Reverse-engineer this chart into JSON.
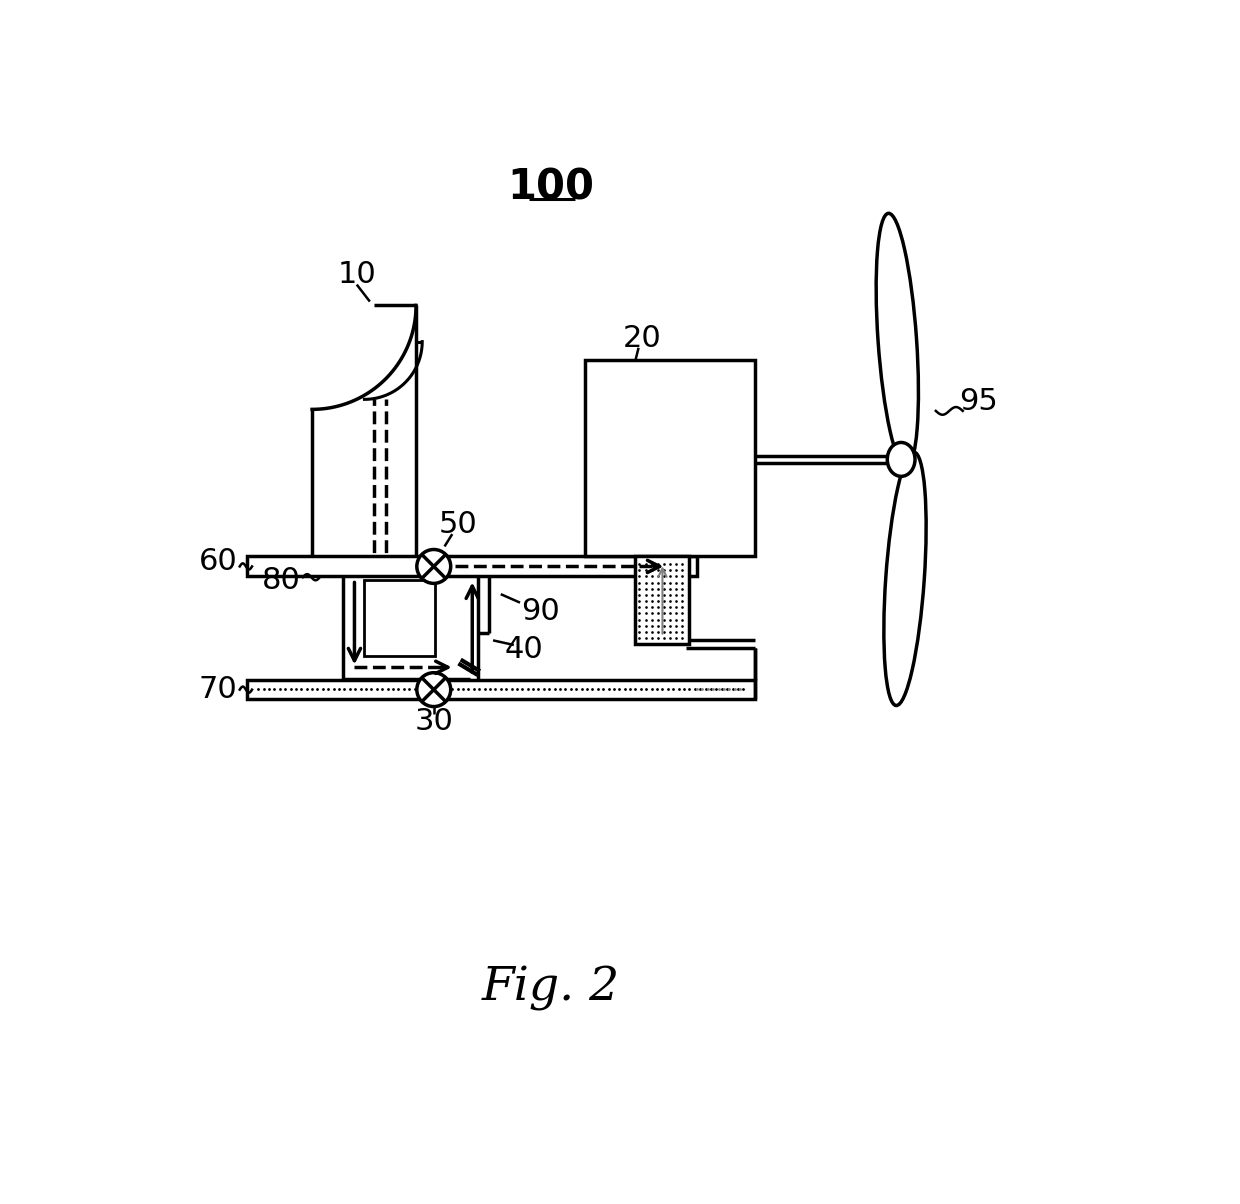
{
  "bg_color": "#ffffff",
  "line_color": "#000000",
  "title": "100",
  "fig_label": "Fig. 2"
}
